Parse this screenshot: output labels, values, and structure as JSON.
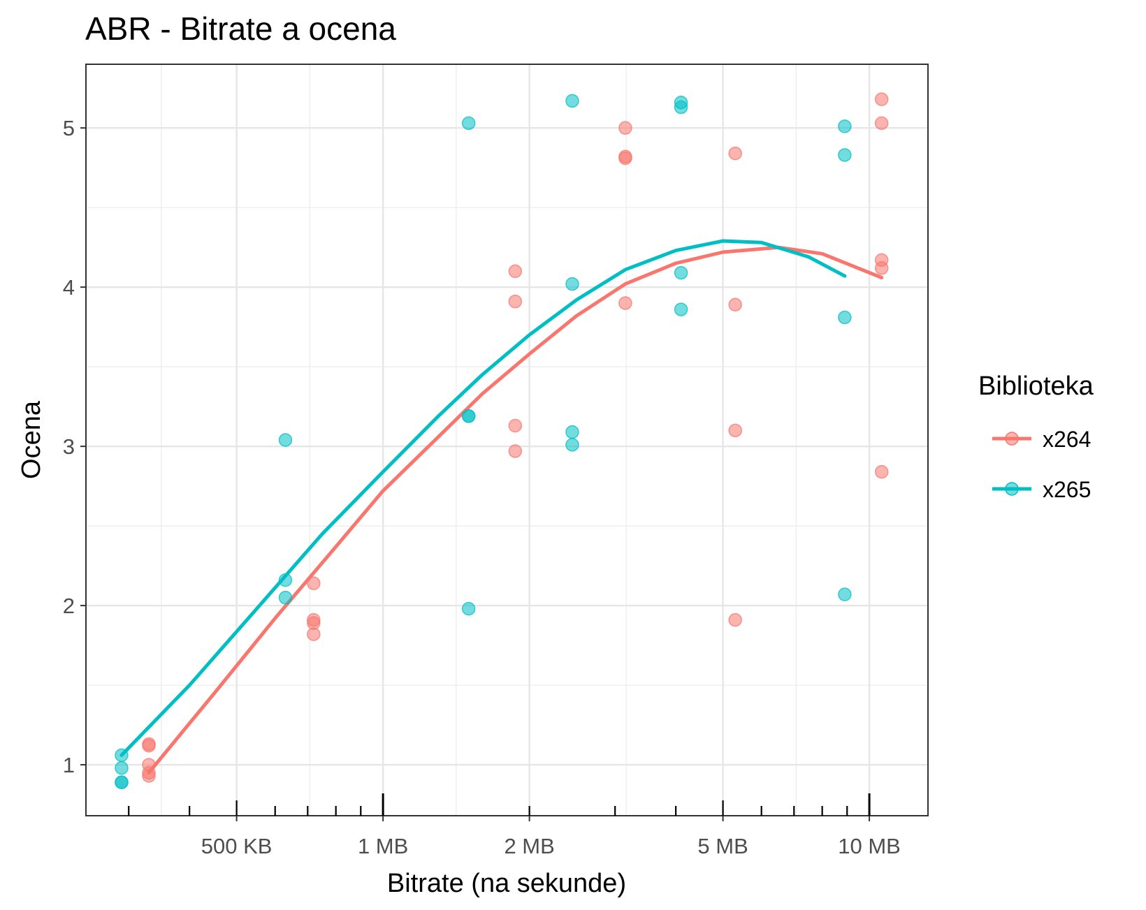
{
  "chart_data": {
    "type": "scatter",
    "title": "ABR - Bitrate a ocena",
    "xlabel": "Bitrate  (na sekunde)",
    "ylabel": "Ocena",
    "x_scale": "log10",
    "x_unit": "MB",
    "xlim": [
      0.245,
      13.2
    ],
    "ylim": [
      0.68,
      5.4
    ],
    "x_ticks": [
      {
        "value": 0.5,
        "label": "500 KB"
      },
      {
        "value": 1,
        "label": "1 MB"
      },
      {
        "value": 2,
        "label": "2 MB"
      },
      {
        "value": 5,
        "label": "5 MB"
      },
      {
        "value": 10,
        "label": "10 MB"
      }
    ],
    "y_ticks": [
      {
        "value": 1,
        "label": "1"
      },
      {
        "value": 2,
        "label": "2"
      },
      {
        "value": 3,
        "label": "3"
      },
      {
        "value": 4,
        "label": "4"
      },
      {
        "value": 5,
        "label": "5"
      }
    ],
    "grid": true,
    "legend": {
      "title": "Biblioteka",
      "position": "right"
    },
    "series": [
      {
        "name": "x264",
        "color": "#F8766D",
        "points": [
          [
            0.33,
            1.13
          ],
          [
            0.33,
            1.12
          ],
          [
            0.33,
            1.0
          ],
          [
            0.33,
            0.95
          ],
          [
            0.33,
            0.93
          ],
          [
            0.72,
            2.14
          ],
          [
            0.72,
            1.91
          ],
          [
            0.72,
            1.89
          ],
          [
            0.72,
            1.82
          ],
          [
            1.87,
            4.1
          ],
          [
            1.87,
            3.91
          ],
          [
            1.87,
            3.13
          ],
          [
            1.87,
            2.97
          ],
          [
            3.15,
            5.0
          ],
          [
            3.15,
            4.82
          ],
          [
            3.15,
            4.81
          ],
          [
            3.15,
            3.9
          ],
          [
            5.3,
            4.84
          ],
          [
            5.3,
            3.89
          ],
          [
            5.3,
            3.1
          ],
          [
            5.3,
            1.91
          ],
          [
            10.6,
            5.18
          ],
          [
            10.6,
            5.03
          ],
          [
            10.6,
            4.17
          ],
          [
            10.6,
            4.12
          ],
          [
            10.6,
            2.84
          ]
        ],
        "smooth": [
          [
            0.33,
            0.95
          ],
          [
            0.45,
            1.45
          ],
          [
            0.6,
            1.92
          ],
          [
            0.8,
            2.37
          ],
          [
            1.0,
            2.72
          ],
          [
            1.3,
            3.06
          ],
          [
            1.6,
            3.33
          ],
          [
            2.0,
            3.58
          ],
          [
            2.5,
            3.82
          ],
          [
            3.15,
            4.02
          ],
          [
            4.0,
            4.15
          ],
          [
            5.0,
            4.22
          ],
          [
            6.5,
            4.25
          ],
          [
            8.0,
            4.21
          ],
          [
            10.6,
            4.06
          ]
        ]
      },
      {
        "name": "x265",
        "color": "#00BFC4",
        "points": [
          [
            0.29,
            1.06
          ],
          [
            0.29,
            0.98
          ],
          [
            0.29,
            0.89
          ],
          [
            0.29,
            0.89
          ],
          [
            0.63,
            3.04
          ],
          [
            0.63,
            2.16
          ],
          [
            0.63,
            2.05
          ],
          [
            1.5,
            5.03
          ],
          [
            1.5,
            3.19
          ],
          [
            1.5,
            3.19
          ],
          [
            1.5,
            1.98
          ],
          [
            2.45,
            5.17
          ],
          [
            2.45,
            4.02
          ],
          [
            2.45,
            3.09
          ],
          [
            2.45,
            3.01
          ],
          [
            4.1,
            5.16
          ],
          [
            4.1,
            5.13
          ],
          [
            4.1,
            4.09
          ],
          [
            4.1,
            3.86
          ],
          [
            8.9,
            5.01
          ],
          [
            8.9,
            4.83
          ],
          [
            8.9,
            3.81
          ],
          [
            8.9,
            2.07
          ]
        ],
        "smooth": [
          [
            0.29,
            1.06
          ],
          [
            0.4,
            1.5
          ],
          [
            0.55,
            1.98
          ],
          [
            0.75,
            2.45
          ],
          [
            1.0,
            2.84
          ],
          [
            1.3,
            3.19
          ],
          [
            1.6,
            3.45
          ],
          [
            2.0,
            3.7
          ],
          [
            2.5,
            3.92
          ],
          [
            3.15,
            4.11
          ],
          [
            4.0,
            4.23
          ],
          [
            5.0,
            4.29
          ],
          [
            6.0,
            4.28
          ],
          [
            7.5,
            4.19
          ],
          [
            8.9,
            4.07
          ]
        ]
      }
    ]
  }
}
